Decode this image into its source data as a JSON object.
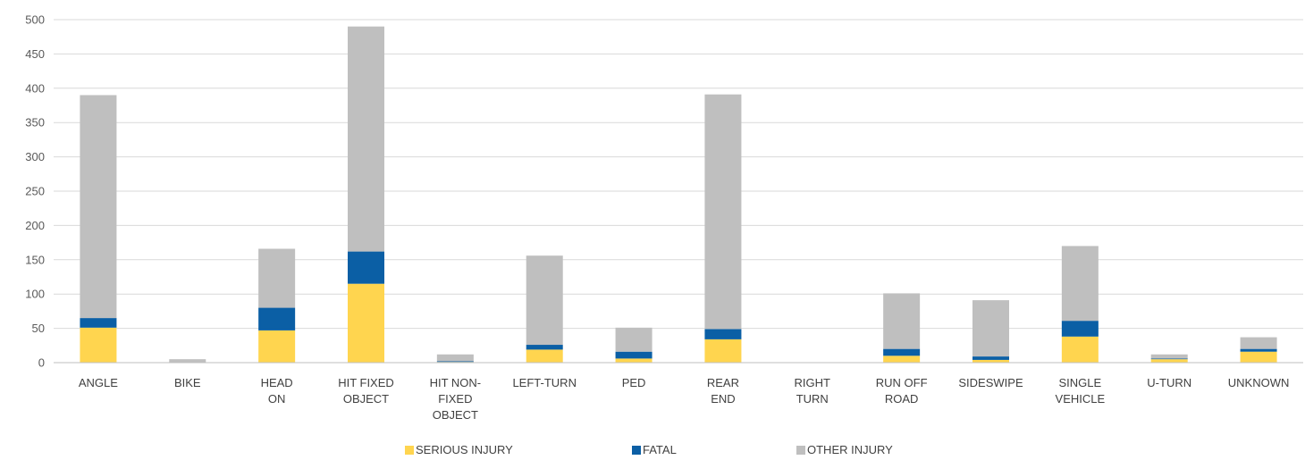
{
  "chart_data": {
    "type": "bar",
    "stacked": true,
    "title": "",
    "xlabel": "",
    "ylabel": "",
    "ylim": [
      0,
      500
    ],
    "yticks": [
      0,
      50,
      100,
      150,
      200,
      250,
      300,
      350,
      400,
      450,
      500
    ],
    "grid": true,
    "legend_position": "bottom",
    "categories": [
      [
        "ANGLE"
      ],
      [
        "BIKE"
      ],
      [
        "HEAD",
        "ON"
      ],
      [
        "HIT FIXED",
        "OBJECT"
      ],
      [
        "HIT NON-",
        "FIXED",
        "OBJECT"
      ],
      [
        "LEFT-TURN"
      ],
      [
        "PED"
      ],
      [
        "REAR",
        "END"
      ],
      [
        "RIGHT",
        "TURN"
      ],
      [
        "RUN OFF",
        "ROAD"
      ],
      [
        "SIDESWIPE"
      ],
      [
        "SINGLE",
        "VEHICLE"
      ],
      [
        "U-TURN"
      ],
      [
        "UNKNOWN"
      ]
    ],
    "series": [
      {
        "name": "SERIOUS INJURY",
        "color": "#FFD54F",
        "values": [
          51,
          0,
          47,
          115,
          1,
          19,
          6,
          34,
          0,
          10,
          4,
          38,
          5,
          16
        ]
      },
      {
        "name": "FATAL",
        "color": "#0B5FA5",
        "values": [
          14,
          0,
          33,
          47,
          1,
          7,
          10,
          15,
          0,
          10,
          5,
          23,
          1,
          4
        ]
      },
      {
        "name": "OTHER INJURY",
        "color": "#BFBFBF",
        "values": [
          325,
          5,
          86,
          328,
          10,
          130,
          35,
          342,
          0,
          81,
          82,
          109,
          6,
          17
        ]
      }
    ]
  }
}
